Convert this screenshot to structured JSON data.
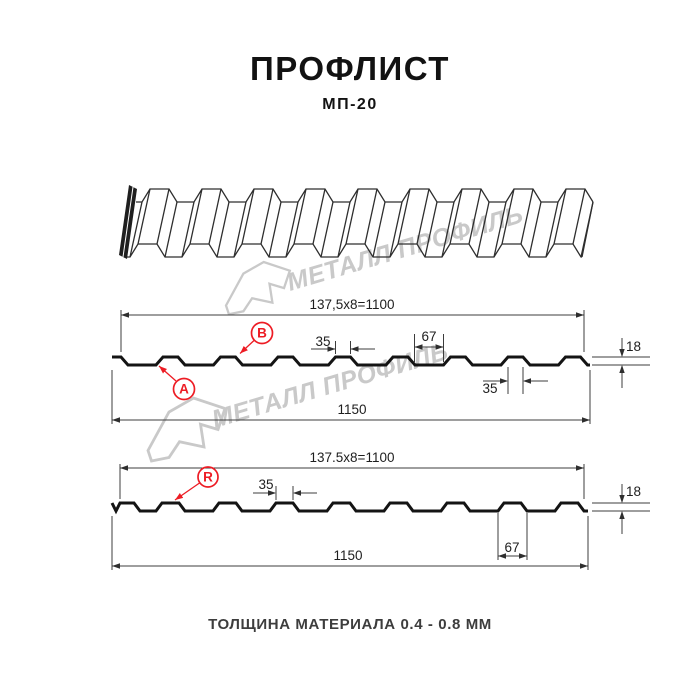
{
  "header": {
    "title": "ПРОФЛИСТ",
    "subtitle": "МП-20"
  },
  "watermark": {
    "text": "МЕТАЛЛ ПРОФИЛЬ"
  },
  "sections": [
    {
      "name": "profile-view-front",
      "labels": {
        "a": "A",
        "b": "B"
      },
      "dims": {
        "module": "137,5x8=1100",
        "rib_top": "35",
        "pan": "67",
        "rib_top_right": "35",
        "height": "18",
        "overall": "1150"
      }
    },
    {
      "name": "profile-view-reverse",
      "labels": {
        "r": "R"
      },
      "dims": {
        "module": "137.5x8=1100",
        "rib_top": "35",
        "pan": "67",
        "height": "18",
        "overall": "1150"
      }
    }
  ],
  "footer": {
    "note": "ТОЛЩИНА МАТЕРИАЛА 0.4 - 0.8 ММ"
  },
  "colors": {
    "accent_red": "#ed1c24",
    "line": "#1c1c1c",
    "watermark": "#c9c9c9"
  }
}
